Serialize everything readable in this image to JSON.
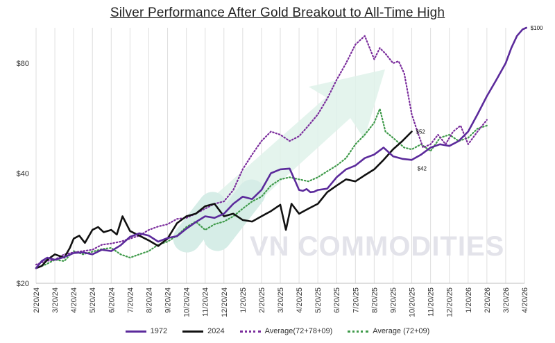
{
  "chart_data": {
    "type": "line",
    "title": "Silver Performance After Gold Breakout to All-Time High",
    "xlabel": "",
    "ylabel": "",
    "y_ticks": [
      "$20",
      "$40",
      "$80"
    ],
    "y_tick_values": [
      20,
      40,
      80
    ],
    "y_scale": "log",
    "ylim": [
      20,
      100
    ],
    "grid": "vertical",
    "legend_position": "bottom",
    "x_ticks": [
      "2/20/24",
      "3/20/24",
      "4/20/24",
      "5/20/24",
      "6/20/24",
      "7/20/24",
      "8/20/24",
      "9/20/24",
      "10/20/24",
      "11/20/24",
      "12/20/24",
      "1/20/25",
      "2/20/25",
      "3/20/25",
      "4/20/25",
      "5/20/25",
      "6/20/25",
      "7/20/25",
      "8/20/25",
      "9/20/25",
      "10/20/25",
      "11/20/25",
      "12/20/25",
      "1/20/26",
      "2/20/26",
      "3/20/26",
      "4/20/26"
    ],
    "watermark": "VN COMMODITIES",
    "series": [
      {
        "name": "1972",
        "color": "#5b2a9b",
        "style": "solid",
        "end_label": "$100",
        "x": [
          0,
          0.3,
          0.6,
          1.0,
          1.5,
          2.0,
          2.5,
          3.0,
          3.5,
          4.0,
          4.5,
          5.0,
          5.5,
          6.0,
          6.5,
          7.0,
          7.5,
          8.0,
          8.5,
          9.0,
          9.5,
          10.0,
          10.5,
          11.0,
          11.5,
          12.0,
          12.5,
          13.0,
          13.5,
          13.8,
          14.0,
          14.2,
          14.4,
          14.6,
          14.8,
          15.0,
          15.5,
          16.0,
          16.5,
          17.0,
          17.5,
          18.0,
          18.5,
          19.0,
          19.5,
          20.0,
          20.5,
          21.0,
          21.5,
          22.0,
          22.5,
          23.0,
          23.5,
          24.0,
          24.5,
          25.0,
          25.3,
          25.6,
          25.9,
          26.1
        ],
        "y": [
          22,
          23,
          23.5,
          23.2,
          23.6,
          24.2,
          24.3,
          24.0,
          24.7,
          24.5,
          25.4,
          26.8,
          27.4,
          27.0,
          26.0,
          26.6,
          26.9,
          28.2,
          29.4,
          30.5,
          30.2,
          31.0,
          33.0,
          34.5,
          34.0,
          36.0,
          40.0,
          41.0,
          41.2,
          38.0,
          36.0,
          35.8,
          36.2,
          35.5,
          35.6,
          36.0,
          36.3,
          39.0,
          41.0,
          42.0,
          44.0,
          45.0,
          47.0,
          44.5,
          43.8,
          43.5,
          45.0,
          47.0,
          48.0,
          47.5,
          49.0,
          52.0,
          58.0,
          65.0,
          72.0,
          80.0,
          88.0,
          95.0,
          99.0,
          100.0
        ]
      },
      {
        "name": "2024",
        "color": "#111111",
        "style": "solid",
        "end_label": "$52",
        "x": [
          0,
          0.3,
          0.6,
          1.0,
          1.5,
          1.8,
          2.0,
          2.3,
          2.6,
          3.0,
          3.3,
          3.6,
          4.0,
          4.3,
          4.6,
          5.0,
          5.5,
          6.0,
          6.5,
          7.0,
          7.5,
          8.0,
          8.5,
          9.0,
          9.5,
          10.0,
          10.5,
          11.0,
          11.5,
          12.0,
          12.5,
          13.0,
          13.3,
          13.6,
          14.0,
          14.5,
          15.0,
          15.5,
          16.0,
          16.5,
          17.0,
          17.5,
          18.0,
          18.5,
          19.0,
          19.5,
          20.0
        ],
        "y": [
          22,
          22.3,
          23.2,
          24.0,
          23.5,
          25.0,
          26.5,
          27.0,
          25.8,
          28.0,
          28.5,
          27.6,
          28.0,
          27.2,
          30.5,
          27.8,
          27.0,
          26.2,
          25.3,
          26.5,
          29.2,
          30.5,
          31.0,
          32.5,
          33.0,
          30.5,
          31.0,
          29.8,
          29.5,
          30.5,
          31.5,
          32.8,
          28.0,
          33.0,
          31.0,
          32.0,
          33.0,
          35.5,
          37.0,
          38.5,
          38.0,
          39.5,
          41.0,
          43.5,
          46.5,
          49.0,
          52.0
        ]
      },
      {
        "name": "Average(72+78+09)",
        "color": "#7a2c9c",
        "style": "dotted",
        "x": [
          0,
          0.5,
          1.0,
          1.5,
          2.0,
          2.5,
          3.0,
          3.5,
          4.0,
          4.5,
          5.0,
          5.5,
          6.0,
          6.5,
          7.0,
          7.5,
          8.0,
          8.5,
          9.0,
          9.5,
          10.0,
          10.5,
          11.0,
          11.5,
          12.0,
          12.5,
          13.0,
          13.5,
          14.0,
          14.5,
          15.0,
          15.5,
          16.0,
          16.5,
          17.0,
          17.5,
          18.0,
          18.3,
          18.6,
          19.0,
          19.3,
          19.6,
          20.0,
          20.3,
          20.6,
          21.0,
          21.4,
          21.8,
          22.2,
          22.6,
          23.0,
          23.5,
          24.0
        ],
        "y": [
          22.5,
          23.0,
          23.2,
          24.0,
          24.3,
          24.5,
          24.7,
          25.5,
          25.7,
          26.0,
          26.5,
          27.0,
          28.0,
          28.6,
          29.0,
          30.0,
          30.2,
          31.0,
          32.0,
          33.0,
          33.5,
          36.0,
          41.0,
          45.0,
          49.0,
          52.0,
          51.0,
          49.0,
          50.5,
          54.0,
          58.0,
          64.0,
          72.0,
          80.0,
          90.0,
          95.0,
          82.0,
          88.0,
          85.0,
          80.0,
          81.0,
          75.0,
          58.0,
          52.0,
          47.0,
          48.0,
          51.0,
          48.0,
          52.0,
          54.0,
          48.0,
          52.0,
          56.0
        ]
      },
      {
        "name": "Average (72+09)",
        "color": "#3f9a4a",
        "style": "dotted",
        "x": [
          0,
          0.5,
          1.0,
          1.5,
          2.0,
          2.5,
          3.0,
          3.5,
          4.0,
          4.5,
          5.0,
          5.5,
          6.0,
          6.5,
          7.0,
          7.5,
          8.0,
          8.5,
          9.0,
          9.5,
          10.0,
          10.5,
          11.0,
          11.5,
          12.0,
          12.5,
          13.0,
          13.5,
          14.0,
          14.5,
          15.0,
          15.5,
          16.0,
          16.5,
          17.0,
          17.5,
          18.0,
          18.3,
          18.6,
          19.0,
          19.3,
          19.6,
          20.0,
          20.5,
          21.0,
          21.5,
          22.0,
          22.5,
          23.0,
          23.5,
          24.0
        ],
        "y": [
          22.0,
          22.5,
          23.2,
          23.0,
          24.5,
          24.0,
          24.4,
          24.8,
          25.0,
          24.0,
          23.5,
          24.0,
          24.5,
          25.5,
          26.0,
          27.0,
          28.5,
          29.5,
          28.0,
          29.0,
          29.5,
          30.5,
          32.0,
          33.5,
          34.5,
          37.0,
          38.5,
          39.0,
          38.5,
          38.0,
          39.0,
          40.5,
          42.0,
          44.0,
          48.0,
          51.0,
          55.0,
          60.0,
          52.0,
          50.0,
          48.5,
          47.0,
          46.5,
          48.0,
          46.0,
          50.0,
          51.0,
          49.0,
          50.0,
          53.0,
          54.0
        ]
      }
    ]
  }
}
